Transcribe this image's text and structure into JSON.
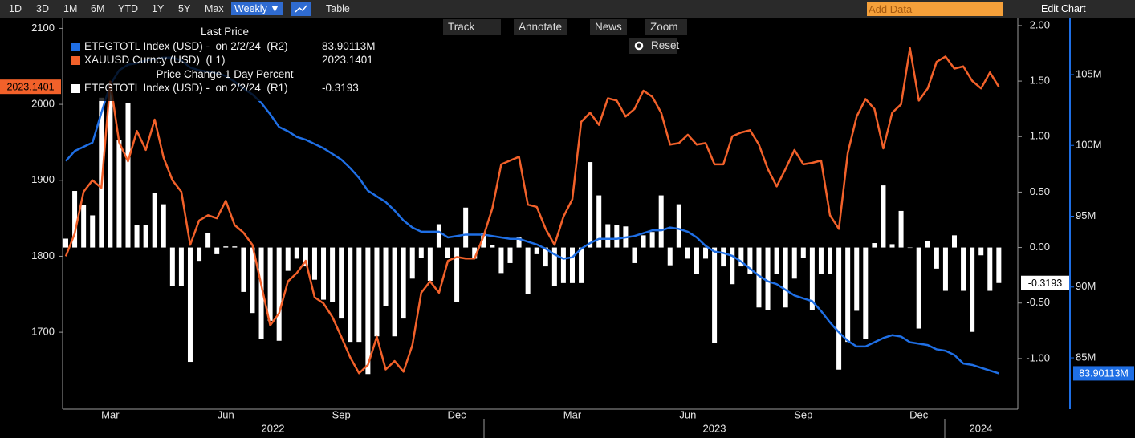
{
  "toolbar": {
    "ranges": [
      "1D",
      "3D",
      "1M",
      "6M",
      "YTD",
      "1Y",
      "5Y",
      "Max"
    ],
    "frequency": "Weekly ▼",
    "table": "Table",
    "add_data": "Add Data",
    "edit_chart": "Edit Chart",
    "tools": [
      "Track",
      "Annotate",
      "News",
      "Zoom"
    ],
    "reset": "Reset"
  },
  "chart_data": {
    "type": "line",
    "legend_groups": [
      "Last Price",
      "Price Change 1 Day Percent"
    ],
    "categories": [
      null,
      null,
      null,
      null,
      null,
      "Mar",
      null,
      null,
      null,
      null,
      null,
      null,
      null,
      null,
      null,
      null,
      null,
      null,
      "Jun",
      null,
      null,
      null,
      null,
      null,
      null,
      null,
      null,
      null,
      null,
      null,
      null,
      "Sep",
      null,
      null,
      null,
      null,
      null,
      null,
      null,
      null,
      null,
      null,
      null,
      null,
      "Dec",
      null,
      null,
      null,
      null,
      null,
      null,
      null,
      null,
      null,
      null,
      null,
      null,
      "Mar",
      null,
      null,
      null,
      null,
      null,
      null,
      null,
      null,
      null,
      null,
      null,
      null,
      "Jun",
      null,
      null,
      null,
      null,
      null,
      null,
      null,
      null,
      null,
      null,
      null,
      null,
      "Sep",
      null,
      null,
      null,
      null,
      null,
      null,
      null,
      null,
      null,
      null,
      null,
      null,
      "Dec",
      null,
      null,
      null,
      null,
      null,
      null,
      null,
      null,
      null
    ],
    "years": [
      "2022",
      "2023",
      "2024"
    ],
    "ylim": [
      1604,
      2111
    ],
    "yticks": [
      1700,
      1800,
      1900,
      2000,
      2100
    ],
    "y2lim": [
      -1.42,
      2.05
    ],
    "y2ticks": [
      {
        "value": 2,
        "label": "2.00"
      },
      {
        "value": 1.5,
        "label": "1.50"
      },
      {
        "value": 1,
        "label": "1.00"
      },
      {
        "value": 0.5,
        "label": "0.50"
      },
      {
        "value": 0,
        "label": "0.00"
      },
      {
        "value": -0.5,
        "label": "-0.50"
      },
      {
        "value": -1,
        "label": "-1.00"
      }
    ],
    "y3lim": [
      81.66,
      108.85
    ],
    "y3ticks": [
      {
        "value": 105,
        "label": "105M"
      },
      {
        "value": 100,
        "label": "100M"
      },
      {
        "value": 95,
        "label": "95M"
      },
      {
        "value": 90,
        "label": "90M"
      },
      {
        "value": 85,
        "label": "85M"
      }
    ],
    "series": [
      {
        "name": "ETFGTOTL Index (USD) -  on 2/2/24  (R2)",
        "type": "line",
        "axis": "y3",
        "color": "#1f6fe5",
        "group": 0,
        "last_label": "83.90113M",
        "values": [
          98.9,
          99.6,
          99.9,
          100.2,
          102.3,
          104.3,
          105.3,
          105.7,
          105.8,
          106.0,
          106.1,
          106.2,
          106.2,
          106.0,
          105.5,
          105.3,
          105.2,
          105.1,
          104.9,
          104.5,
          104.0,
          103.6,
          103.0,
          102.2,
          101.3,
          101.0,
          100.6,
          100.4,
          100.1,
          99.8,
          99.4,
          99.0,
          98.4,
          97.7,
          96.8,
          96.4,
          96.0,
          95.4,
          94.7,
          94.2,
          93.9,
          93.9,
          93.9,
          93.5,
          93.6,
          93.7,
          93.7,
          93.7,
          93.6,
          93.5,
          93.4,
          93.4,
          93.2,
          93.0,
          92.7,
          92.3,
          92.0,
          92.1,
          92.7,
          93.1,
          93.4,
          93.4,
          93.4,
          93.5,
          93.6,
          93.8,
          94.0,
          94.0,
          94.2,
          94.1,
          93.9,
          93.5,
          92.9,
          92.5,
          92.4,
          92.2,
          91.8,
          91.3,
          90.8,
          90.4,
          90.2,
          89.8,
          89.4,
          89.2,
          89.0,
          88.3,
          87.5,
          86.8,
          86.2,
          85.8,
          85.8,
          86.1,
          86.4,
          86.6,
          86.5,
          86.1,
          86.0,
          85.9,
          85.6,
          85.5,
          85.2,
          84.6,
          84.5,
          84.3,
          84.1,
          83.90113
        ]
      },
      {
        "name": "XAUUSD Curncy (USD)  (L1)",
        "type": "line",
        "axis": "y",
        "color": "#f2612a",
        "group": 0,
        "values": [
          1800,
          1830,
          1885,
          1900,
          1890,
          2030,
          1950,
          1925,
          1965,
          1940,
          1980,
          1930,
          1900,
          1885,
          1815,
          1847,
          1854,
          1850,
          1873,
          1841,
          1831,
          1815,
          1762,
          1709,
          1725,
          1767,
          1778,
          1794,
          1746,
          1738,
          1720,
          1694,
          1667,
          1646,
          1657,
          1694,
          1651,
          1662,
          1648,
          1683,
          1752,
          1767,
          1752,
          1794,
          1799,
          1797,
          1797,
          1826,
          1863,
          1921,
          1926,
          1931,
          1868,
          1865,
          1836,
          1815,
          1852,
          1875,
          1977,
          1989,
          1973,
          2008,
          2005,
          1984,
          1994,
          2018,
          2010,
          1989,
          1947,
          1949,
          1960,
          1947,
          1949,
          1921,
          1921,
          1958,
          1963,
          1966,
          1947,
          1915,
          1892,
          1915,
          1940,
          1921,
          1923,
          1926,
          1854,
          1836,
          1936,
          1984,
          2007,
          1994,
          1942,
          1989,
          2000,
          2074,
          2005,
          2021,
          2056,
          2063,
          2047,
          2050,
          2031,
          2021,
          2042,
          2023.1401
        ]
      },
      {
        "name": "ETFGTOTL Index (USD) -  on 2/2/24  (R1)",
        "type": "bar",
        "axis": "y2",
        "color": "#ffffff",
        "group": 1,
        "values": [
          0.08,
          0.51,
          0.38,
          0.29,
          1.35,
          1.48,
          0.97,
          1.3,
          0.2,
          0.2,
          0.49,
          0.39,
          -0.35,
          -0.35,
          -1.03,
          -0.12,
          0.13,
          -0.06,
          0.01,
          0.01,
          -0.4,
          -0.59,
          -0.82,
          -0.66,
          -0.84,
          -0.21,
          -0.1,
          -0.17,
          -0.29,
          -0.47,
          -0.49,
          -0.64,
          -0.85,
          -0.85,
          -1.14,
          -0.8,
          -0.53,
          -0.8,
          -0.64,
          -0.28,
          -0.09,
          -0.3,
          0.21,
          -0.09,
          -0.49,
          0.36,
          -0.1,
          0.13,
          0.02,
          -0.23,
          -0.14,
          0.09,
          -0.42,
          -0.06,
          -0.17,
          -0.35,
          -0.32,
          -0.32,
          -0.32,
          0.77,
          0.47,
          0.21,
          0.2,
          0.19,
          -0.14,
          0.11,
          0.14,
          0.47,
          -0.16,
          0.39,
          -0.1,
          -0.24,
          -0.1,
          -0.86,
          -0.17,
          -0.33,
          -0.17,
          -0.24,
          -0.54,
          -0.56,
          -0.24,
          -0.54,
          -0.28,
          -0.09,
          -0.56,
          -0.24,
          -0.24,
          -1.1,
          -0.85,
          -0.57,
          -0.82,
          0.04,
          0.56,
          0.03,
          0.33,
          0,
          -0.73,
          0.06,
          -0.19,
          -0.39,
          0.11,
          -0.39,
          -0.76,
          -0.07,
          -0.39,
          -0.3193
        ]
      }
    ]
  }
}
